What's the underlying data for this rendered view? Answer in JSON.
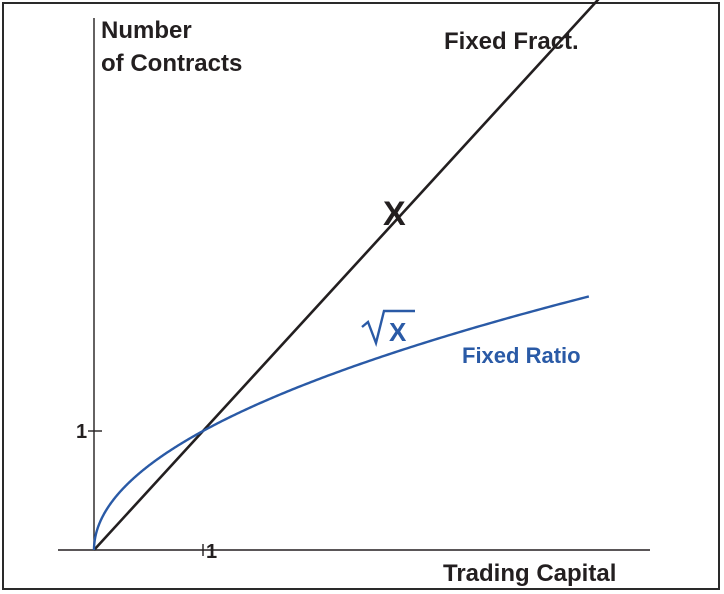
{
  "chart_data": {
    "type": "line",
    "title": "",
    "ylabel_line1": "Number",
    "ylabel_line2": "of Contracts",
    "xlabel": "Trading Capital",
    "x_tick_label": "1",
    "y_tick_label": "1",
    "xlim": [
      0,
      4.7
    ],
    "ylim": [
      0,
      4.7
    ],
    "grid": false,
    "series": [
      {
        "name": "Fixed Fract.",
        "formula_label": "X",
        "function": "x",
        "color": "#231f20",
        "x": [
          0,
          4.7
        ],
        "y": [
          0,
          4.7
        ]
      },
      {
        "name": "Fixed Ratio",
        "formula_label": "√X",
        "function": "sqrt",
        "color": "#2a5aa6",
        "x": [
          0,
          0.01,
          0.05,
          0.1,
          0.25,
          0.5,
          1,
          1.5,
          2,
          2.5,
          3,
          3.5,
          4,
          4.54
        ],
        "y": [
          0,
          0.1,
          0.224,
          0.316,
          0.5,
          0.707,
          1,
          1.225,
          1.414,
          1.581,
          1.732,
          1.871,
          2,
          2.131
        ]
      }
    ]
  }
}
